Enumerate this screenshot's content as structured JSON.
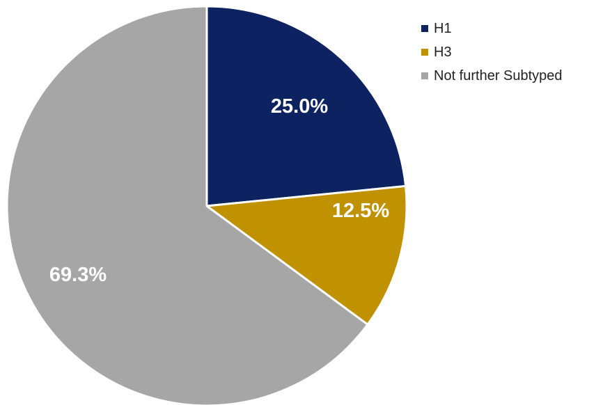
{
  "chart_data": {
    "type": "pie",
    "title": "",
    "slices": [
      {
        "name": "H1",
        "value": 25.0,
        "label": "25.0%",
        "color": "#0d2260"
      },
      {
        "name": "H3",
        "value": 12.5,
        "label": "12.5%",
        "color": "#c09100"
      },
      {
        "name": "Not further Subtyped",
        "value": 69.3,
        "label": "69.3%",
        "color": "#a6a6a6"
      }
    ],
    "legend_position": "top-right"
  }
}
